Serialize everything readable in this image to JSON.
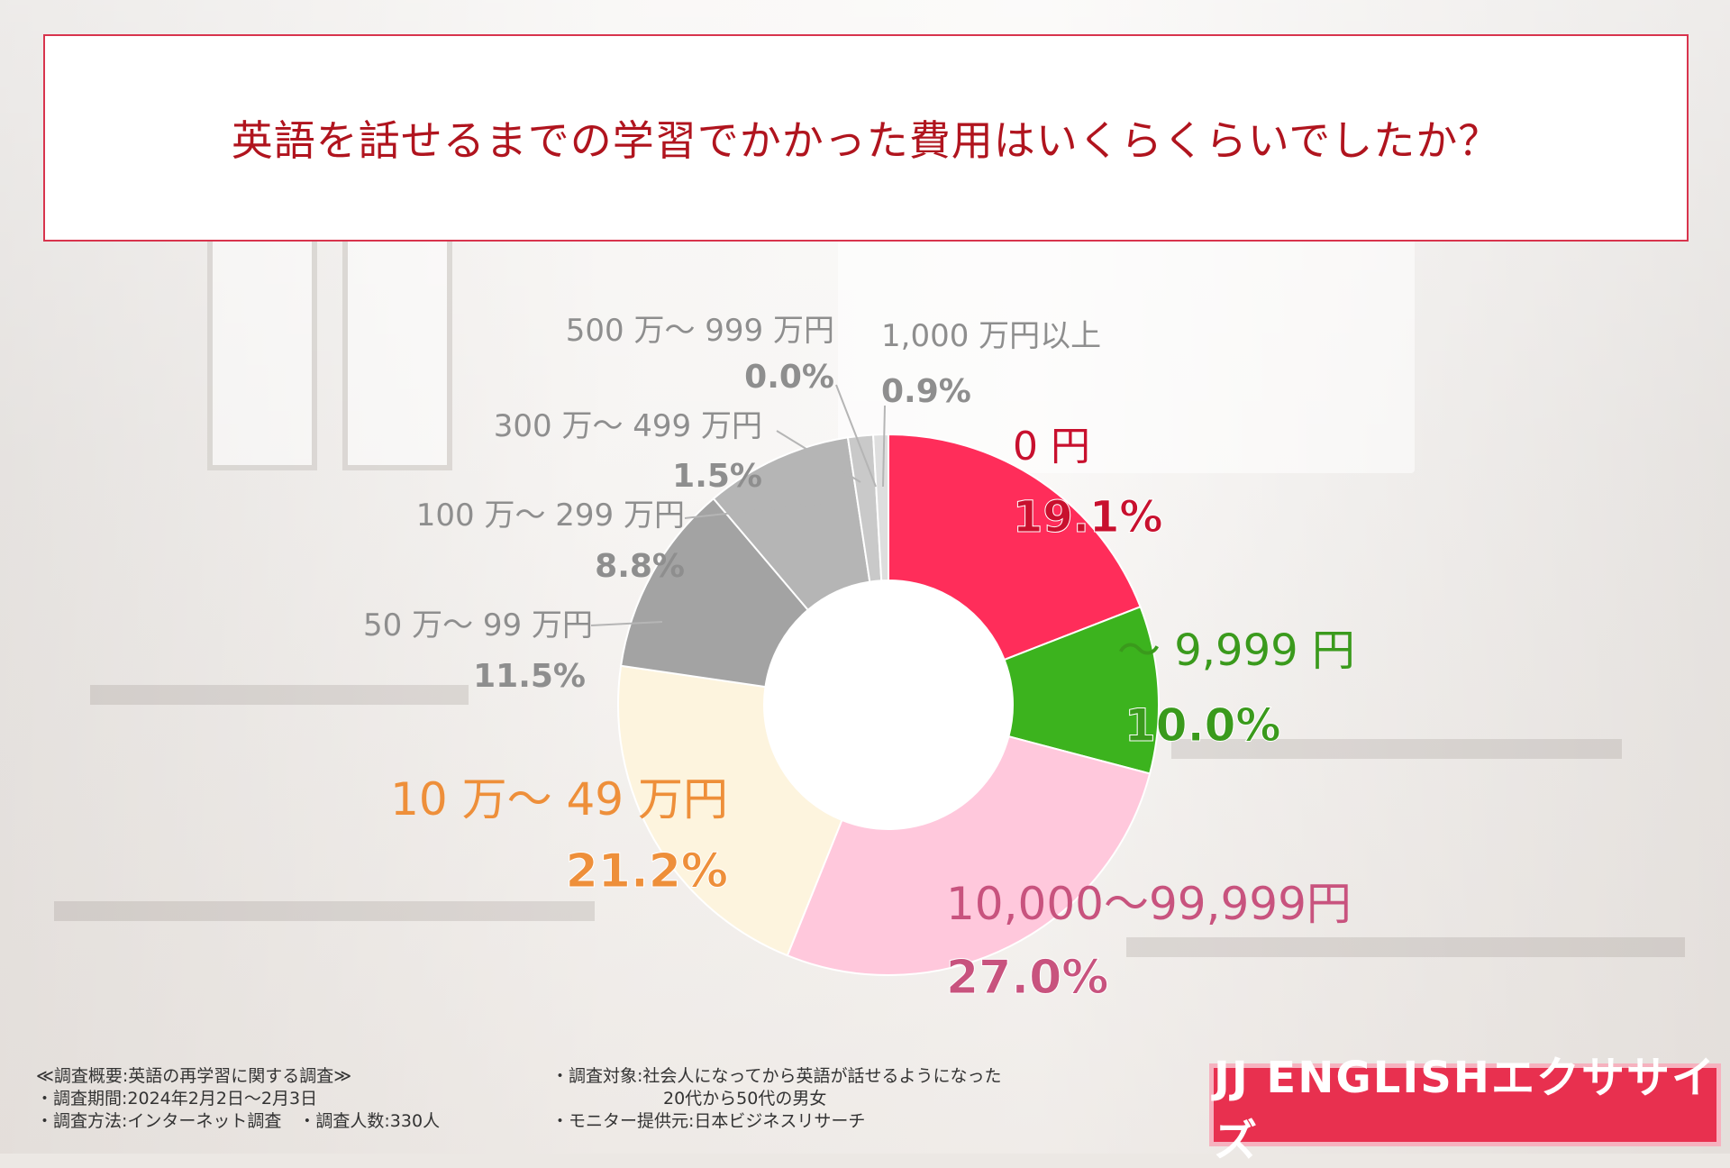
{
  "title": "英語を話せるまでの学習でかかった費用はいくらくらいでしたか？",
  "chart_data": {
    "type": "donut",
    "title": "英語を話せるまでの学習でかかった費用はいくらくらいでしたか？",
    "unit": "%",
    "categories": [
      "0 円",
      "〜 9,999 円",
      "10,000〜99,999円",
      "10 万〜 49 万円",
      "50 万〜 99 万円",
      "100 万〜 299 万円",
      "300 万〜 499 万円",
      "500 万〜 999 万円",
      "1,000 万円以上"
    ],
    "values": [
      19.1,
      10.0,
      27.0,
      21.2,
      11.5,
      8.8,
      1.5,
      0.0,
      0.9
    ],
    "labels": [
      "19.1%",
      "10.0%",
      "27.0%",
      "21.2%",
      "11.5%",
      "8.8%",
      "1.5%",
      "0.0%",
      "0.9%"
    ],
    "colors": [
      "#ff2d5a",
      "#3cb31e",
      "#ffc8dc",
      "#fdf4de",
      "#a3a3a3",
      "#b5b5b5",
      "#c9c9c9",
      "#d4d4d4",
      "#dedede"
    ],
    "label_colors": [
      "#c8102e",
      "#3a9a1c",
      "#c8537e",
      "#ee8f3a",
      "#8e8e8e",
      "#8e8e8e",
      "#8e8e8e",
      "#8e8e8e",
      "#8e8e8e"
    ]
  },
  "footer": {
    "line1": "≪調査概要:英語の再学習に関する調査≫",
    "line2": "・調査期間:2024年2月2日〜2月3日",
    "line3": "・調査方法:インターネット調査　・調査人数:330人",
    "line4": "・調査対象:社会人になってから英語が話せるようになった",
    "line5": "20代から50代の男女",
    "line6": "・モニター提供元:日本ビジネスリサーチ"
  },
  "logo_text": "JJ ENGLISHエクササイズ"
}
